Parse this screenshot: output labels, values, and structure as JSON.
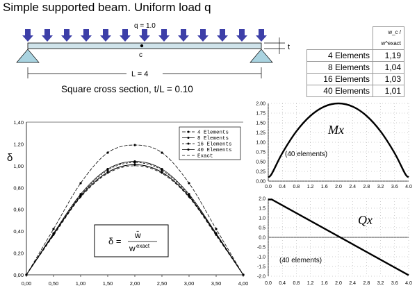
{
  "title": "Simple supported beam. Uniform load q",
  "beam": {
    "load_label": "q = 1.0",
    "center_label": "c",
    "thickness_label": "t",
    "length_label": "L = 4",
    "load_arrow_count": 13
  },
  "section_label": "Square cross section,  t/L = 0.10",
  "ratio_table": {
    "header": "w_c / w^exact",
    "rows": [
      {
        "label": "4 Elements",
        "value": "1,19"
      },
      {
        "label": "8 Elements",
        "value": "1,04"
      },
      {
        "label": "16 Elements",
        "value": "1,03"
      },
      {
        "label": "40 Elements",
        "value": "1,01"
      }
    ]
  },
  "deflection_chart": {
    "ylabel": "δ",
    "formula": {
      "lhs": "δ =",
      "num": "w̄",
      "den": "w",
      "den_sup": "exact"
    },
    "x_ticks": [
      "0,00",
      "0,50",
      "1,00",
      "1,50",
      "2,00",
      "2,50",
      "3,00",
      "3,50",
      "4,00"
    ],
    "y_ticks": [
      "0,00",
      "0,20",
      "0,40",
      "0,60",
      "0,80",
      "1,00",
      "1,20",
      "1,40"
    ],
    "legend": [
      "4 Elements",
      "8 Elements",
      "16 Elements",
      "40 Elements",
      "Exact"
    ]
  },
  "moment_chart": {
    "label": "Mx",
    "note": "(40 elements)",
    "x_ticks": [
      "0.0",
      "0.4",
      "0.8",
      "1.2",
      "1.6",
      "2.0",
      "2.4",
      "2.8",
      "3.2",
      "3.6",
      "4.0"
    ],
    "y_ticks": [
      "0.00",
      "0.25",
      "0.50",
      "0.75",
      "1.00",
      "1.25",
      "1.50",
      "1.75",
      "2.00"
    ]
  },
  "shear_chart": {
    "label": "Qx",
    "note": "(40 elements)",
    "x_ticks": [
      "0.0",
      "0.4",
      "0.8",
      "1.2",
      "1.6",
      "2.0",
      "2.4",
      "2.8",
      "3.2",
      "3.6",
      "4.0"
    ],
    "y_ticks": [
      "2.0",
      "1.5",
      "1.0",
      "0.5",
      "0.0",
      "-0.5",
      "-1.0",
      "-1.5",
      "-2.0"
    ]
  },
  "chart_data": [
    {
      "type": "line",
      "x": [
        0,
        0.5,
        1.0,
        1.5,
        2.0,
        2.5,
        3.0,
        3.5,
        4.0
      ],
      "series": [
        {
          "name": "4 Elements",
          "values": [
            0,
            0.42,
            0.84,
            1.12,
            1.19,
            1.12,
            0.84,
            0.42,
            0
          ]
        },
        {
          "name": "8 Elements",
          "values": [
            0,
            0.38,
            0.74,
            0.97,
            1.04,
            0.97,
            0.74,
            0.38,
            0
          ]
        },
        {
          "name": "16 Elements",
          "values": [
            0,
            0.38,
            0.73,
            0.96,
            1.03,
            0.96,
            0.73,
            0.38,
            0
          ]
        },
        {
          "name": "40 Elements",
          "values": [
            0,
            0.37,
            0.72,
            0.94,
            1.01,
            0.94,
            0.72,
            0.37,
            0
          ]
        },
        {
          "name": "Exact",
          "values": [
            0,
            0.36,
            0.71,
            0.93,
            1.0,
            0.93,
            0.71,
            0.36,
            0
          ]
        }
      ],
      "xlim": [
        0,
        4
      ],
      "ylim": [
        0,
        1.4
      ],
      "ylabel": "δ"
    },
    {
      "type": "line",
      "x": [
        0,
        0.1,
        0.4,
        0.8,
        1.2,
        1.6,
        2.0,
        2.4,
        2.8,
        3.2,
        3.6,
        3.9,
        4.0
      ],
      "series": [
        {
          "name": "Mx",
          "values": [
            0.1,
            0.19,
            0.72,
            1.28,
            1.68,
            1.92,
            2.0,
            1.92,
            1.68,
            1.28,
            0.72,
            0.19,
            0.1
          ]
        }
      ],
      "xlim": [
        0,
        4
      ],
      "ylim": [
        0,
        2
      ]
    },
    {
      "type": "line",
      "x": [
        0,
        0.1,
        4.0
      ],
      "series": [
        {
          "name": "Qx",
          "values": [
            1.95,
            1.95,
            -1.95
          ]
        }
      ],
      "xlim": [
        0,
        4
      ],
      "ylim": [
        -2,
        2
      ]
    }
  ]
}
